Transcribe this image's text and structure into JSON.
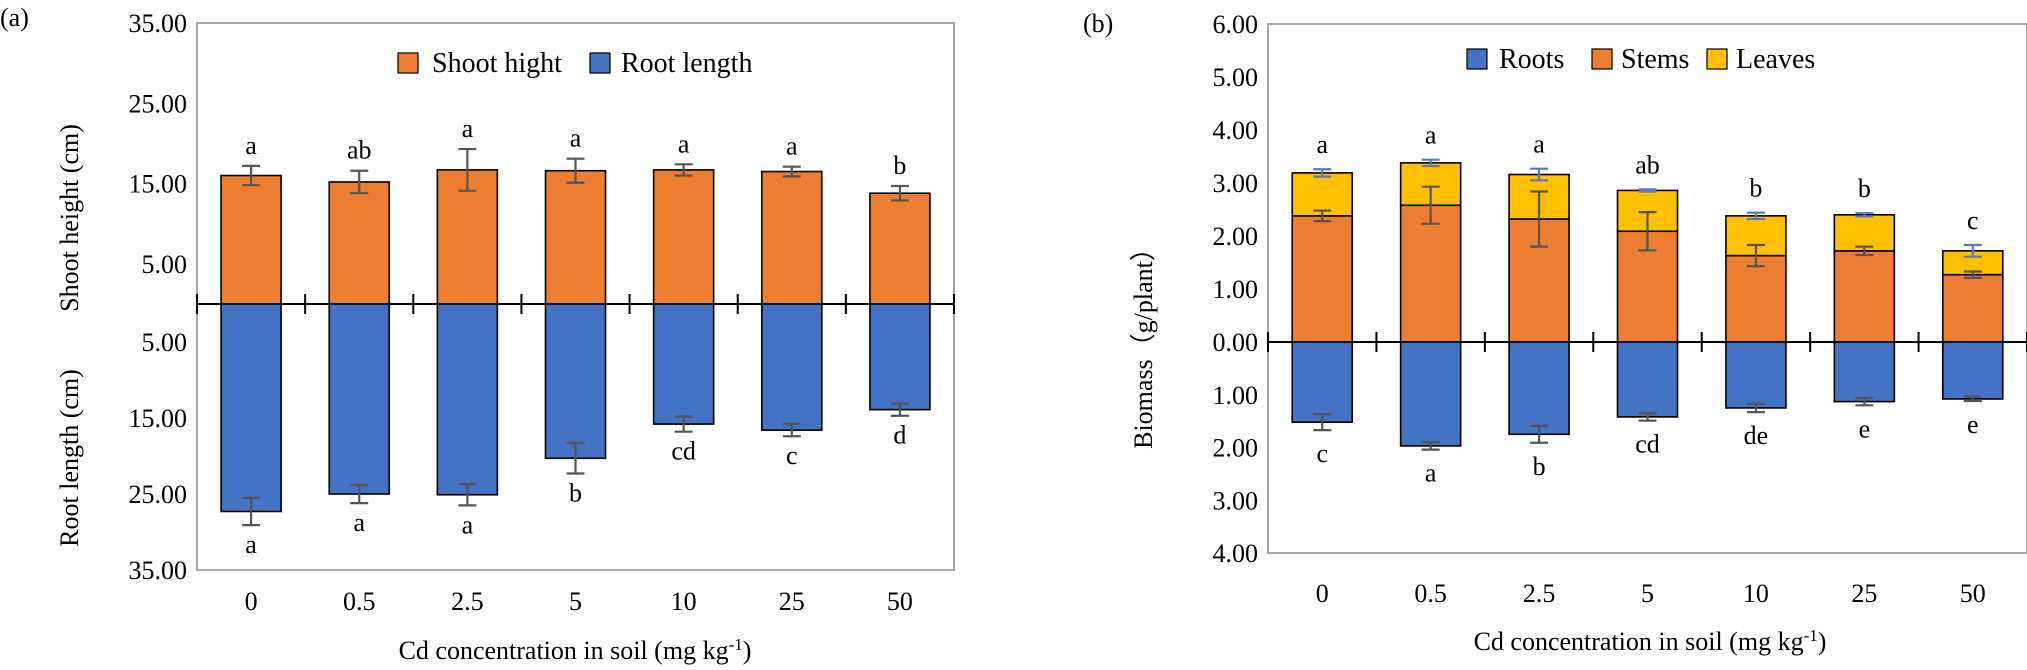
{
  "panel_a": {
    "panel_label": "(a)",
    "ylabel_top": "Shoot height (cm)",
    "ylabel_bottom": "Root length (cm)",
    "xlabel": "Cd concentration in soil (mg kg",
    "xlabel_sup": "-1",
    "xlabel_end": ")"
  },
  "panel_b": {
    "panel_label": "(b)",
    "ylabel": "Biomass（g/plant）",
    "xlabel": "Cd concentration in soil (mg kg",
    "xlabel_sup": "-1",
    "xlabel_end": ")"
  },
  "chart_data": [
    {
      "type": "bar",
      "subtype": "diverging",
      "panel": "(a)",
      "categories": [
        "0",
        "0.5",
        "2.5",
        "5",
        "10",
        "25",
        "50"
      ],
      "upper_ticks": [
        "5.00",
        "15.00",
        "25.00",
        "35.00"
      ],
      "lower_ticks": [
        "5.00",
        "15.00",
        "25.00",
        "35.00"
      ],
      "upper_range": [
        0,
        35
      ],
      "lower_range": [
        0,
        35
      ],
      "legend_position": "top-center",
      "series": [
        {
          "name": "Shoot hight",
          "direction": "up",
          "color": "#ed7d31",
          "values": [
            16.0,
            15.2,
            16.7,
            16.6,
            16.7,
            16.5,
            13.8
          ],
          "errors": [
            1.2,
            1.4,
            2.6,
            1.5,
            0.7,
            0.6,
            0.9
          ],
          "letters": [
            "a",
            "ab",
            "a",
            "a",
            "a",
            "a",
            "b"
          ]
        },
        {
          "name": "Root length",
          "direction": "down",
          "color": "#4472c4",
          "values": [
            27.3,
            25.0,
            25.1,
            20.3,
            15.8,
            16.6,
            13.9
          ],
          "errors": [
            1.8,
            1.2,
            1.4,
            2.0,
            1.0,
            0.8,
            0.8
          ],
          "letters": [
            "a",
            "a",
            "a",
            "b",
            "cd",
            "c",
            "d"
          ]
        }
      ]
    },
    {
      "type": "bar",
      "subtype": "stacked-diverging",
      "panel": "(b)",
      "categories": [
        "0",
        "0.5",
        "2.5",
        "5",
        "10",
        "25",
        "50"
      ],
      "upper_ticks": [
        "0.00",
        "1.00",
        "2.00",
        "3.00",
        "4.00",
        "5.00",
        "6.00"
      ],
      "lower_ticks": [
        "1.00",
        "2.00",
        "3.00",
        "4.00"
      ],
      "upper_range": [
        0,
        6
      ],
      "lower_range": [
        0,
        4
      ],
      "legend_position": "top-center",
      "series": [
        {
          "name": "Roots",
          "direction": "down",
          "color": "#4472c4",
          "values": [
            1.52,
            1.97,
            1.75,
            1.42,
            1.25,
            1.13,
            1.08
          ],
          "errors": [
            0.15,
            0.07,
            0.16,
            0.07,
            0.08,
            0.07,
            0.04
          ],
          "letters": [
            "c",
            "a",
            "b",
            "cd",
            "de",
            "e",
            "e"
          ]
        },
        {
          "name": "Stems",
          "direction": "up",
          "color": "#ed7d31",
          "values": [
            2.38,
            2.58,
            2.32,
            2.09,
            1.63,
            1.72,
            1.27
          ],
          "errors": [
            0.1,
            0.35,
            0.52,
            0.36,
            0.2,
            0.08,
            0.06
          ]
        },
        {
          "name": "Leaves",
          "direction": "up",
          "stacked_on": "Stems",
          "color": "#ffc000",
          "values": [
            0.81,
            0.8,
            0.84,
            0.77,
            0.75,
            0.68,
            0.45
          ],
          "totals": [
            3.19,
            3.38,
            3.16,
            2.86,
            2.38,
            2.4,
            1.72
          ],
          "total_errors": [
            0.07,
            0.06,
            0.11,
            0.02,
            0.06,
            0.03,
            0.11
          ],
          "letters": [
            "a",
            "a",
            "a",
            "ab",
            "b",
            "b",
            "c"
          ]
        }
      ]
    }
  ]
}
